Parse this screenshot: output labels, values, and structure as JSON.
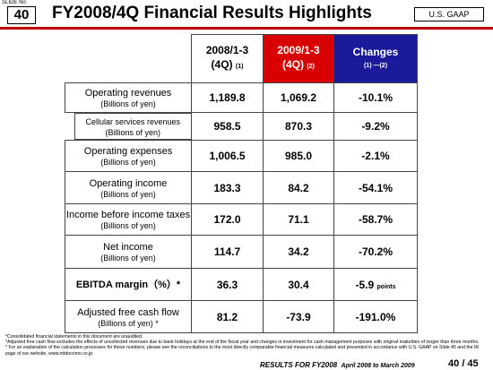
{
  "header": {
    "slide_label": "SLIDE No.",
    "slide_number": "40",
    "title": "FY2008/4Q Financial Results Highlights",
    "badge": "U.S. GAAP"
  },
  "table": {
    "columns": [
      {
        "lines": [
          "2008/1-3",
          "(4Q)"
        ],
        "note": "(1)"
      },
      {
        "lines": [
          "2009/1-3",
          "(4Q)"
        ],
        "note": "(2)"
      },
      {
        "lines": [
          "Changes"
        ],
        "note": "(1) ―(2)"
      }
    ],
    "rows": [
      {
        "label": "Operating revenues",
        "unit": "(Billions of yen)",
        "values": [
          "1,189.8",
          "1,069.2",
          "-10.1%"
        ]
      },
      {
        "label": "Cellular services revenues",
        "unit": "(Billions of yen)",
        "values": [
          "958.5",
          "870.3",
          "-9.2%"
        ],
        "indent": true
      },
      {
        "label": "Operating expenses",
        "unit": "(Billions of yen)",
        "values": [
          "1,006.5",
          "985.0",
          "-2.1%"
        ]
      },
      {
        "label": "Operating income",
        "unit": "(Billions of yen)",
        "values": [
          "183.3",
          "84.2",
          "-54.1%"
        ]
      },
      {
        "label": "Income before income taxes",
        "unit": "(Billions of yen)",
        "values": [
          "172.0",
          "71.1",
          "-58.7%"
        ]
      },
      {
        "label": "Net income",
        "unit": "(Billions of yen)",
        "values": [
          "114.7",
          "34.2",
          "-70.2%"
        ]
      },
      {
        "label": "EBITDA margin（%）*",
        "values": [
          "36.3",
          "30.4",
          "-5.9"
        ],
        "suffix": "points",
        "bold": true
      },
      {
        "label": "Adjusted free cash flow",
        "unit": "(Billions of yen) *",
        "values": [
          "81.2",
          "-73.9",
          "-191.0%"
        ]
      }
    ]
  },
  "footnotes": [
    "*Consolidated financial statements in this document are unaudited.",
    "*Adjusted free cash flow excludes the effects of uncollected revenues due to bank holidays at the end of the fiscal year and changes in investment for cash management purposes with original maturities of longer than three months.",
    "* For an explanation of the calculation processes for these numbers, please see the reconciliations to the most directly comparable financial measures calculated and presented in accordance with U.S. GAAP on Slide 45 and the IR page of our website, www.nttdocomo.co.jp."
  ],
  "footer": {
    "text": "RESULTS FOR FY2008",
    "period": "April 2008 to March 2009",
    "page": "40",
    "total": "/ 45"
  }
}
